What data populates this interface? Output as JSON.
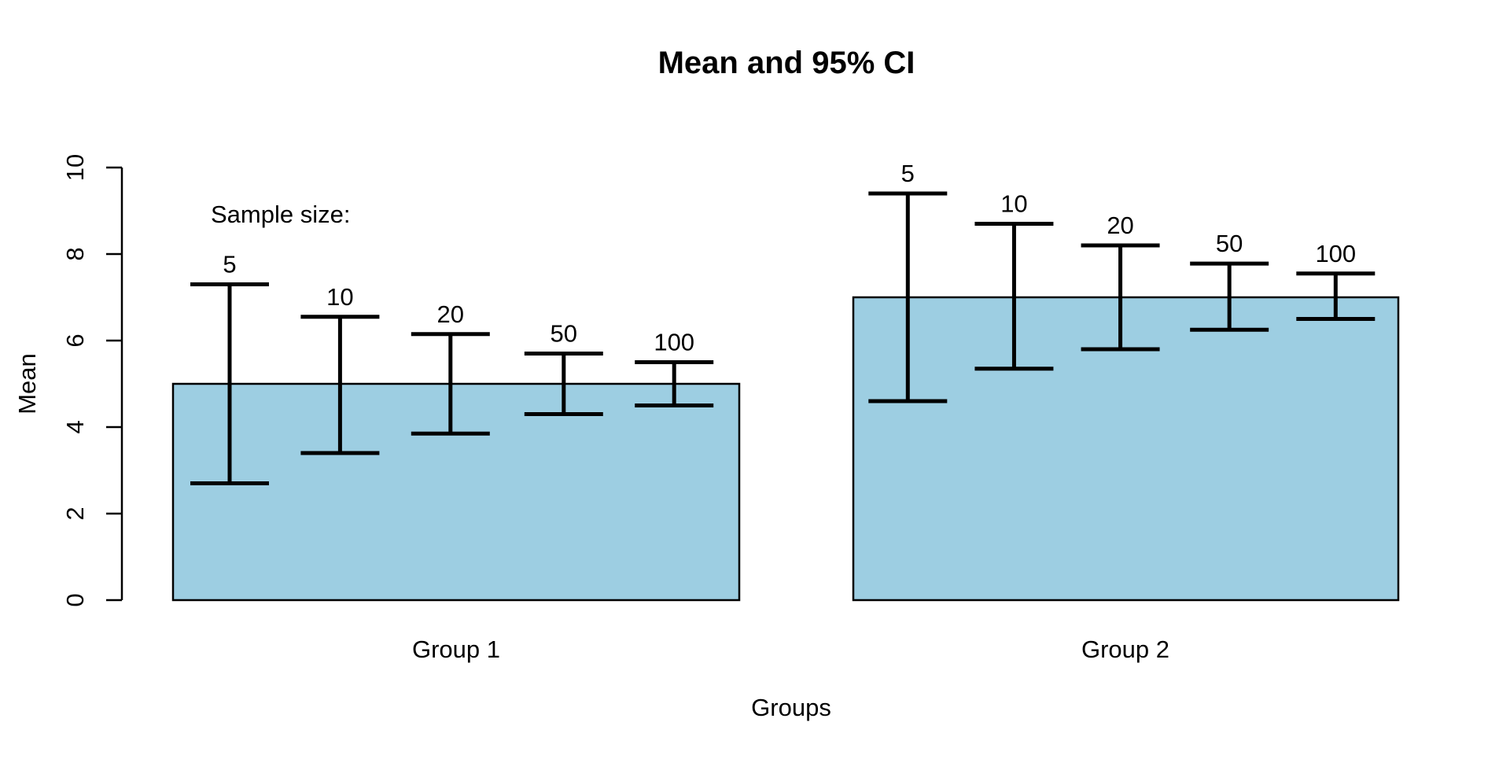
{
  "chart_data": {
    "type": "bar",
    "title": "Mean and 95% CI",
    "xlabel": "Groups",
    "ylabel": "Mean",
    "annotation": "Sample size:",
    "ylim": [
      0,
      10
    ],
    "yticks": [
      0,
      2,
      4,
      6,
      8,
      10
    ],
    "grid": false,
    "legend_position": "none",
    "bar_color": "#9DCEE2",
    "bar_border_color": "#000000",
    "error_bar_color": "#000000",
    "categories": [
      "Group 1",
      "Group 2"
    ],
    "bar_values": [
      5,
      7
    ],
    "sample_sizes": [
      5,
      10,
      20,
      50,
      100
    ],
    "series": [
      {
        "name": "Group 1",
        "mean": 5,
        "intervals": [
          {
            "n": 5,
            "lower": 2.7,
            "upper": 7.3
          },
          {
            "n": 10,
            "lower": 3.4,
            "upper": 6.55
          },
          {
            "n": 20,
            "lower": 3.85,
            "upper": 6.15
          },
          {
            "n": 50,
            "lower": 4.3,
            "upper": 5.7
          },
          {
            "n": 100,
            "lower": 4.5,
            "upper": 5.5
          }
        ]
      },
      {
        "name": "Group 2",
        "mean": 7,
        "intervals": [
          {
            "n": 5,
            "lower": 4.6,
            "upper": 9.4
          },
          {
            "n": 10,
            "lower": 5.35,
            "upper": 8.7
          },
          {
            "n": 20,
            "lower": 5.8,
            "upper": 8.2
          },
          {
            "n": 50,
            "lower": 6.25,
            "upper": 7.78
          },
          {
            "n": 100,
            "lower": 6.5,
            "upper": 7.55
          }
        ]
      }
    ]
  }
}
